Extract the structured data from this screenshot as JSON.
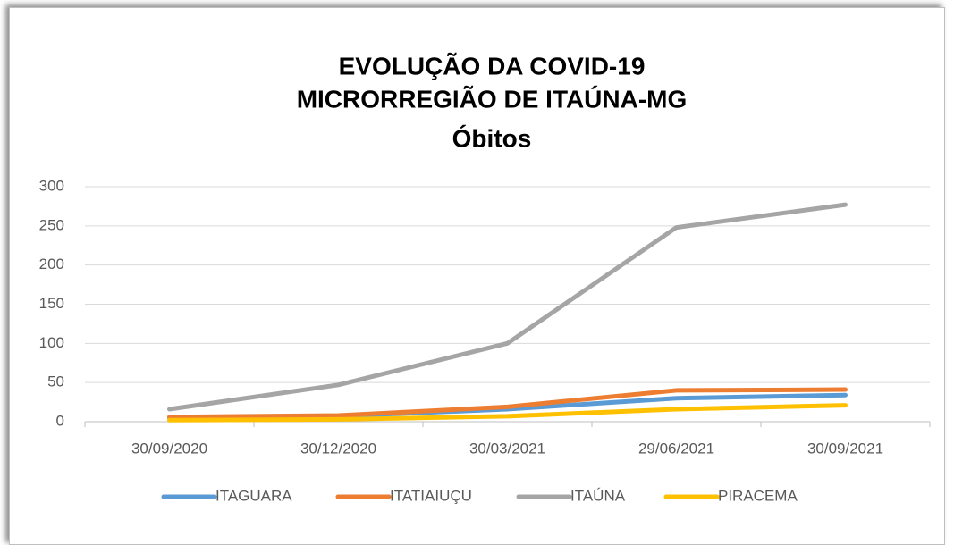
{
  "chart_data": {
    "type": "line",
    "title": [
      "EVOLUÇÃO DA COVID-19",
      "MICRORREGIÃO DE ITAÚNA-MG",
      "Óbitos"
    ],
    "categories": [
      "30/09/2020",
      "30/12/2020",
      "30/03/2021",
      "29/06/2021",
      "30/09/2021"
    ],
    "series": [
      {
        "name": "ITAGUARA",
        "color": "#5b9bd5",
        "values": [
          5,
          7,
          16,
          30,
          34
        ]
      },
      {
        "name": "ITATIAIUÇU",
        "color": "#ed7d31",
        "values": [
          6,
          8,
          19,
          40,
          41
        ]
      },
      {
        "name": "ITAÚNA",
        "color": "#a5a5a5",
        "values": [
          16,
          47,
          100,
          248,
          277
        ]
      },
      {
        "name": "PIRACEMA",
        "color": "#ffc000",
        "values": [
          2,
          3,
          7,
          16,
          21
        ]
      }
    ],
    "ylim": [
      0,
      300
    ],
    "yticks": [
      0,
      50,
      100,
      150,
      200,
      250,
      300
    ],
    "grid": true,
    "legend": "bottom"
  }
}
